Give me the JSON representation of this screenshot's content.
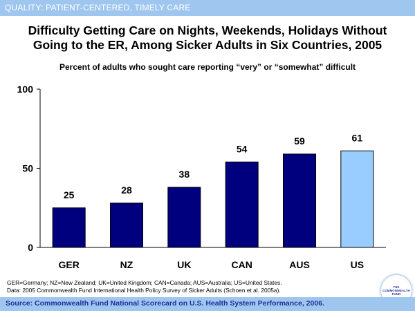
{
  "header": {
    "category": "QUALITY: PATIENT-CENTERED, TIMELY CARE"
  },
  "colors": {
    "topbar": "#9fc6ee",
    "bar_primary": "#00007f",
    "bar_highlight": "#99ccff",
    "source_text": "#1f2f9c"
  },
  "chart_data": {
    "type": "bar",
    "title": "Difficulty Getting Care on Nights, Weekends, Holidays Without Going to the ER, Among Sicker Adults in Six Countries, 2005",
    "title_line1": "Difficulty Getting Care on Nights, Weekends, Holidays Without",
    "title_line2": "Going to the ER, Among Sicker Adults in Six Countries, 2005",
    "subtitle": "Percent of adults who sought care reporting “very” or “somewhat” difficult",
    "categories": [
      "GER",
      "NZ",
      "UK",
      "CAN",
      "AUS",
      "US"
    ],
    "values": [
      25,
      28,
      38,
      54,
      59,
      61
    ],
    "highlight": [
      "US"
    ],
    "ylim": [
      0,
      100
    ],
    "yticks": [
      0,
      50,
      100
    ],
    "xlabel": "",
    "ylabel": "",
    "grid": false,
    "data_labels": true
  },
  "footnotes": {
    "abbreviations": "GER=Germany; NZ=New Zealand; UK=United Kingdom; CAN=Canada; AUS=Australia; US=United States.",
    "data_source": "Data: 2005 Commonwealth Fund International Health Policy Survey of Sicker Adults (Schoen et al. 2005a)."
  },
  "source": {
    "text": "Source: Commonwealth Fund National Scorecard on U.S. Health System Performance, 2006."
  },
  "logo": {
    "line1": "THE",
    "line2": "COMMONWEALTH",
    "line3": "FUND"
  }
}
